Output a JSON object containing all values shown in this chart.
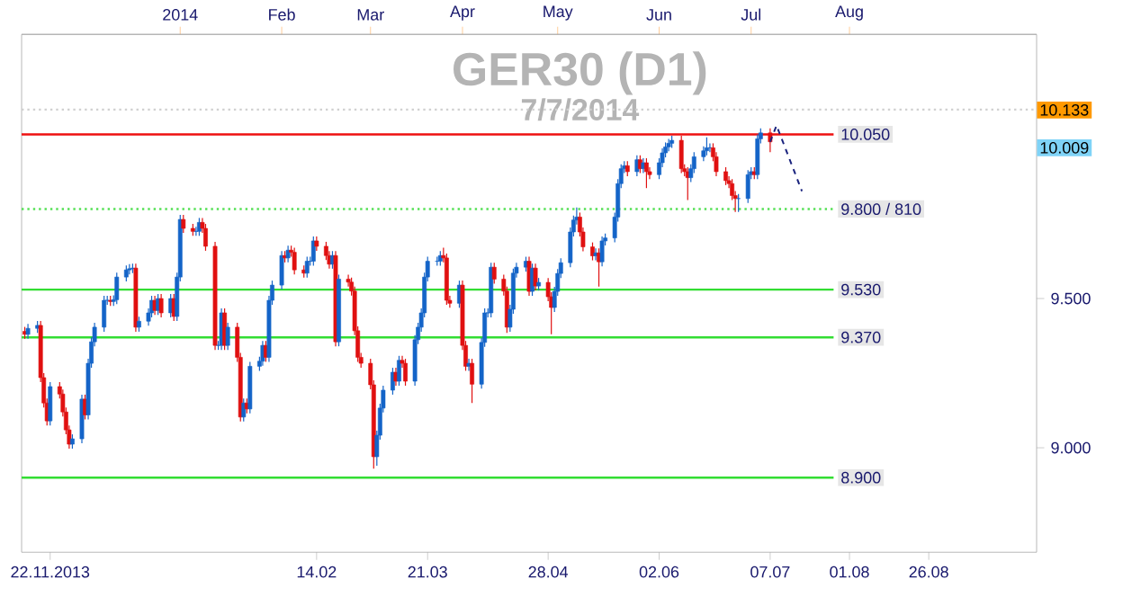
{
  "chart_data": {
    "type": "candlestick",
    "title": "GER30 (D1)",
    "subtitle": "7/7/2014",
    "colors": [
      "#e01010",
      "#1464c8",
      "#1464c8",
      "#e01010",
      "#e01010",
      "#e01010",
      "#1464c8",
      "#e01010",
      "#e01010",
      "#e01010",
      "#e01010",
      "#1464c8",
      "#1464c8",
      "#e01010",
      "#1464c8",
      "#1464c8",
      "#1464c8",
      "#1464c8",
      "#1464c8",
      "#e01010",
      "#1464c8",
      "#1464c8",
      "#1464c8",
      "#1464c8",
      "#1464c8",
      "#e01010",
      "#1464c8",
      "#1464c8",
      "#1464c8",
      "#e01010",
      "#1464c8",
      "#e01010",
      "#1464c8",
      "#e01010",
      "#1464c8",
      "#1464c8",
      "#e01010",
      "#e01010",
      "#1464c8",
      "#1464c8",
      "#e01010",
      "#e01010",
      "#e01010",
      "#1464c8",
      "#1464c8",
      "#e01010",
      "#1464c8",
      "#e01010",
      "#e01010",
      "#1464c8",
      "#e01010",
      "#1464c8",
      "#1464c8",
      "#1464c8",
      "#e01010",
      "#1464c8",
      "#1464c8",
      "#1464c8",
      "#e01010",
      "#1464c8",
      "#e01010",
      "#e01010",
      "#e01010",
      "#1464c8",
      "#1464c8",
      "#1464c8",
      "#e01010",
      "#e01010",
      "#e01010",
      "#1464c8",
      "#e01010",
      "#1464c8",
      "#e01010",
      "#e01010",
      "#e01010",
      "#e01010",
      "#e01010",
      "#e01010",
      "#e01010",
      "#1464c8",
      "#1464c8",
      "#1464c8",
      "#1464c8",
      "#e01010",
      "#1464c8",
      "#e01010",
      "#e01010",
      "#1464c8",
      "#1464c8",
      "#1464c8",
      "#1464c8",
      "#1464c8",
      "#1464c8",
      "#1464c8",
      "#e01010",
      "#e01010",
      "#e01010",
      "#1464c8",
      "#e01010",
      "#e01010",
      "#1464c8",
      "#e01010",
      "#1464c8",
      "#1464c8",
      "#1464c8",
      "#1464c8",
      "#e01010",
      "#e01010",
      "#e01010",
      "#1464c8",
      "#1464c8",
      "#1464c8",
      "#1464c8",
      "#e01010",
      "#1464c8",
      "#e01010",
      "#1464c8",
      "#e01010",
      "#e01010",
      "#1464c8",
      "#1464c8",
      "#1464c8",
      "#1464c8",
      "#1464c8",
      "#1464c8",
      "#e01010",
      "#e01010",
      "#e01010",
      "#1464c8",
      "#e01010",
      "#1464c8",
      "#1464c8",
      "#1464c8",
      "#1464c8",
      "#1464c8",
      "#1464c8",
      "#e01010",
      "#1464c8",
      "#e01010",
      "#1464c8",
      "#e01010",
      "#e01010",
      "#1464c8",
      "#1464c8",
      "#1464c8",
      "#1464c8",
      "#1464c8",
      "#e01010",
      "#e01010",
      "#e01010",
      "#1464c8",
      "#1464c8",
      "#1464c8",
      "#1464c8",
      "#1464c8",
      "#e01010",
      "#e01010",
      "#e01010",
      "#e01010",
      "#e01010",
      "#e01010",
      "#1464c8",
      "#1464c8",
      "#1464c8",
      "#e01010",
      "#1464c8",
      "#1464c8",
      "#e01010"
    ],
    "x": [
      "2013-11-14",
      "2013-11-15",
      "2013-11-18",
      "2013-11-19",
      "2013-11-20",
      "2013-11-21",
      "2013-11-22",
      "2013-11-25",
      "2013-11-26",
      "2013-11-27",
      "2013-11-28",
      "2013-11-29",
      "2013-12-02",
      "2013-12-03",
      "2013-12-04",
      "2013-12-05",
      "2013-12-06",
      "2013-12-09",
      "2013-12-10",
      "2013-12-11",
      "2013-12-12",
      "2013-12-13",
      "2013-12-16",
      "2013-12-17",
      "2013-12-18",
      "2013-12-19",
      "2013-12-20",
      "2013-12-23",
      "2013-12-24",
      "2013-12-25",
      "2013-12-26",
      "2013-12-27",
      "2013-12-30",
      "2013-12-31",
      "2014-01-01",
      "2014-01-02",
      "2014-01-03",
      "2014-01-06",
      "2014-01-07",
      "2014-01-08",
      "2014-01-09",
      "2014-01-10",
      "2014-01-13",
      "2014-01-14",
      "2014-01-15",
      "2014-01-16",
      "2014-01-17",
      "2014-01-20",
      "2014-01-21",
      "2014-01-22",
      "2014-01-23",
      "2014-01-24",
      "2014-01-27",
      "2014-01-28",
      "2014-01-29",
      "2014-01-30",
      "2014-01-31",
      "2014-02-03",
      "2014-02-04",
      "2014-02-05",
      "2014-02-06",
      "2014-02-07",
      "2014-02-10",
      "2014-02-11",
      "2014-02-12",
      "2014-02-13",
      "2014-02-14",
      "2014-02-17",
      "2014-02-18",
      "2014-02-19",
      "2014-02-20",
      "2014-02-21",
      "2014-02-24",
      "2014-02-25",
      "2014-02-26",
      "2014-02-27",
      "2014-02-28",
      "2014-03-03",
      "2014-03-04",
      "2014-03-05",
      "2014-03-06",
      "2014-03-07",
      "2014-03-10",
      "2014-03-11",
      "2014-03-12",
      "2014-03-13",
      "2014-03-14",
      "2014-03-17",
      "2014-03-18",
      "2014-03-19",
      "2014-03-20",
      "2014-03-21",
      "2014-03-24",
      "2014-03-25",
      "2014-03-26",
      "2014-03-27",
      "2014-03-28",
      "2014-03-31",
      "2014-04-01",
      "2014-04-02",
      "2014-04-03",
      "2014-04-04",
      "2014-04-07",
      "2014-04-08",
      "2014-04-09",
      "2014-04-10",
      "2014-04-11",
      "2014-04-14",
      "2014-04-15",
      "2014-04-16",
      "2014-04-17",
      "2014-04-18",
      "2014-04-21",
      "2014-04-22",
      "2014-04-23",
      "2014-04-24",
      "2014-04-25",
      "2014-04-28",
      "2014-04-29",
      "2014-04-30",
      "2014-05-01",
      "2014-05-02",
      "2014-05-05",
      "2014-05-06",
      "2014-05-07",
      "2014-05-08",
      "2014-05-09",
      "2014-05-12",
      "2014-05-13",
      "2014-05-14",
      "2014-05-15",
      "2014-05-16",
      "2014-05-19",
      "2014-05-20",
      "2014-05-21",
      "2014-05-22",
      "2014-05-23",
      "2014-05-26",
      "2014-05-27",
      "2014-05-28",
      "2014-05-29",
      "2014-05-30",
      "2014-06-02",
      "2014-06-03",
      "2014-06-04",
      "2014-06-05",
      "2014-06-06",
      "2014-06-09",
      "2014-06-10",
      "2014-06-11",
      "2014-06-12",
      "2014-06-13",
      "2014-06-16",
      "2014-06-17",
      "2014-06-18",
      "2014-06-19",
      "2014-06-20",
      "2014-06-23",
      "2014-06-24",
      "2014-06-25",
      "2014-06-26",
      "2014-06-27",
      "2014-06-30",
      "2014-07-01",
      "2014-07-02",
      "2014-07-03",
      "2014-07-04",
      "2014-07-07"
    ],
    "ohlc": [
      [
        9.39,
        9.405,
        9.365,
        9.38
      ],
      [
        9.38,
        9.415,
        9.365,
        9.4
      ],
      [
        9.4,
        9.425,
        9.385,
        9.41
      ],
      [
        9.41,
        9.425,
        9.22,
        9.235
      ],
      [
        9.235,
        9.25,
        9.135,
        9.15
      ],
      [
        9.15,
        9.165,
        9.075,
        9.09
      ],
      [
        9.09,
        9.22,
        9.075,
        9.205
      ],
      [
        9.205,
        9.22,
        9.165,
        9.18
      ],
      [
        9.18,
        9.195,
        9.105,
        9.12
      ],
      [
        9.12,
        9.135,
        9.045,
        9.06
      ],
      [
        9.06,
        9.075,
        8.997,
        9.012
      ],
      [
        9.012,
        9.045,
        8.997,
        9.03
      ],
      [
        9.03,
        9.178,
        9.015,
        9.163
      ],
      [
        9.163,
        9.178,
        9.095,
        9.11
      ],
      [
        9.11,
        9.298,
        9.095,
        9.283
      ],
      [
        9.283,
        9.37,
        9.268,
        9.355
      ],
      [
        9.355,
        9.419,
        9.34,
        9.404
      ],
      [
        9.404,
        9.509,
        9.389,
        9.494
      ],
      [
        9.494,
        9.509,
        9.479,
        9.494
      ],
      [
        9.494,
        9.509,
        9.475,
        9.49
      ],
      [
        9.49,
        9.511,
        9.475,
        9.496
      ],
      [
        9.496,
        9.587,
        9.481,
        9.572
      ],
      [
        9.572,
        9.611,
        9.557,
        9.596
      ],
      [
        9.596,
        9.615,
        9.581,
        9.6
      ],
      [
        9.6,
        9.617,
        9.585,
        9.602
      ],
      [
        9.602,
        9.617,
        9.389,
        9.404
      ],
      [
        9.404,
        9.439,
        9.389,
        9.424
      ],
      [
        9.424,
        9.467,
        9.409,
        9.452
      ],
      [
        9.452,
        9.509,
        9.437,
        9.494
      ],
      [
        9.494,
        9.509,
        9.445,
        9.46
      ],
      [
        9.46,
        9.515,
        9.445,
        9.5
      ],
      [
        9.5,
        9.515,
        9.437,
        9.452
      ],
      [
        9.452,
        9.515,
        9.437,
        9.5
      ],
      [
        9.5,
        9.515,
        9.425,
        9.44
      ],
      [
        9.44,
        9.587,
        9.425,
        9.572
      ],
      [
        9.572,
        9.78,
        9.557,
        9.765
      ],
      [
        9.765,
        9.78,
        9.72,
        9.735
      ],
      [
        9.735,
        9.75,
        9.71,
        9.725
      ],
      [
        9.725,
        9.74,
        9.71,
        9.725
      ],
      [
        9.725,
        9.77,
        9.71,
        9.755
      ],
      [
        9.755,
        9.77,
        9.72,
        9.735
      ],
      [
        9.735,
        9.75,
        9.66,
        9.675
      ],
      [
        9.675,
        9.69,
        9.328,
        9.343
      ],
      [
        9.343,
        9.358,
        9.328,
        9.343
      ],
      [
        9.343,
        9.467,
        9.328,
        9.452
      ],
      [
        9.452,
        9.467,
        9.328,
        9.343
      ],
      [
        9.343,
        9.419,
        9.328,
        9.404
      ],
      [
        9.404,
        9.419,
        9.288,
        9.303
      ],
      [
        9.303,
        9.318,
        9.088,
        9.103
      ],
      [
        9.103,
        9.165,
        9.088,
        9.15
      ],
      [
        9.15,
        9.165,
        9.115,
        9.13
      ],
      [
        9.13,
        9.288,
        9.115,
        9.273
      ],
      [
        9.273,
        9.305,
        9.258,
        9.29
      ],
      [
        9.29,
        9.358,
        9.275,
        9.343
      ],
      [
        9.343,
        9.358,
        9.288,
        9.303
      ],
      [
        9.303,
        9.509,
        9.288,
        9.494
      ],
      [
        9.494,
        9.56,
        9.479,
        9.545
      ],
      [
        9.545,
        9.659,
        9.53,
        9.644
      ],
      [
        9.644,
        9.659,
        9.621,
        9.636
      ],
      [
        9.636,
        9.677,
        9.621,
        9.662
      ],
      [
        9.662,
        9.677,
        9.64,
        9.655
      ],
      [
        9.655,
        9.67,
        9.581,
        9.596
      ],
      [
        9.596,
        9.611,
        9.57,
        9.585
      ],
      [
        9.585,
        9.64,
        9.57,
        9.625
      ],
      [
        9.625,
        9.64,
        9.61,
        9.625
      ],
      [
        9.625,
        9.708,
        9.61,
        9.693
      ],
      [
        9.693,
        9.708,
        9.66,
        9.675
      ],
      [
        9.675,
        9.69,
        9.629,
        9.644
      ],
      [
        9.644,
        9.659,
        9.6,
        9.615
      ],
      [
        9.615,
        9.659,
        9.6,
        9.644
      ],
      [
        9.644,
        9.659,
        9.34,
        9.355
      ],
      [
        9.355,
        9.58,
        9.34,
        9.565
      ],
      [
        9.565,
        9.58,
        9.54,
        9.555
      ],
      [
        9.555,
        9.57,
        9.51,
        9.525
      ],
      [
        9.525,
        9.54,
        9.377,
        9.392
      ],
      [
        9.392,
        9.407,
        9.288,
        9.303
      ],
      [
        9.303,
        9.318,
        9.268,
        9.283
      ],
      [
        9.283,
        9.298,
        9.196,
        9.211
      ],
      [
        9.211,
        9.226,
        8.93,
        8.97
      ],
      [
        8.97,
        9.057,
        8.94,
        9.042
      ],
      [
        9.042,
        9.148,
        9.027,
        9.133
      ],
      [
        9.133,
        9.208,
        9.118,
        9.193
      ],
      [
        9.193,
        9.268,
        9.178,
        9.253
      ],
      [
        9.253,
        9.268,
        9.208,
        9.223
      ],
      [
        9.223,
        9.308,
        9.208,
        9.293
      ],
      [
        9.293,
        9.308,
        9.268,
        9.283
      ],
      [
        9.283,
        9.298,
        9.208,
        9.223
      ],
      [
        9.223,
        9.377,
        9.208,
        9.362
      ],
      [
        9.362,
        9.419,
        9.347,
        9.404
      ],
      [
        9.404,
        9.467,
        9.389,
        9.452
      ],
      [
        9.452,
        9.587,
        9.437,
        9.572
      ],
      [
        9.572,
        9.64,
        9.557,
        9.625
      ],
      [
        9.625,
        9.64,
        9.61,
        9.625
      ],
      [
        9.625,
        9.659,
        9.61,
        9.644
      ],
      [
        9.644,
        9.67,
        9.621,
        9.636
      ],
      [
        9.636,
        9.651,
        9.479,
        9.494
      ],
      [
        9.494,
        9.509,
        9.469,
        9.484
      ],
      [
        9.484,
        9.56,
        9.469,
        9.545
      ],
      [
        9.545,
        9.56,
        9.328,
        9.343
      ],
      [
        9.343,
        9.358,
        9.258,
        9.273
      ],
      [
        9.273,
        9.298,
        9.258,
        9.283
      ],
      [
        9.283,
        9.298,
        9.15,
        9.213
      ],
      [
        9.213,
        9.368,
        9.198,
        9.353
      ],
      [
        9.353,
        9.467,
        9.338,
        9.452
      ],
      [
        9.452,
        9.467,
        9.437,
        9.452
      ],
      [
        9.452,
        9.62,
        9.437,
        9.605
      ],
      [
        9.605,
        9.62,
        9.55,
        9.565
      ],
      [
        9.565,
        9.58,
        9.51,
        9.525
      ],
      [
        9.525,
        9.54,
        9.385,
        9.404
      ],
      [
        9.404,
        9.479,
        9.389,
        9.464
      ],
      [
        9.464,
        9.6,
        9.449,
        9.585
      ],
      [
        9.585,
        9.62,
        9.57,
        9.605
      ],
      [
        9.605,
        9.64,
        9.59,
        9.625
      ],
      [
        9.625,
        9.64,
        9.509,
        9.524
      ],
      [
        9.524,
        9.617,
        9.509,
        9.602
      ],
      [
        9.602,
        9.617,
        9.527,
        9.542
      ],
      [
        9.542,
        9.569,
        9.527,
        9.554
      ],
      [
        9.554,
        9.569,
        9.491,
        9.506
      ],
      [
        9.506,
        9.521,
        9.38,
        9.47
      ],
      [
        9.47,
        9.539,
        9.455,
        9.524
      ],
      [
        9.524,
        9.599,
        9.509,
        9.584
      ],
      [
        9.584,
        9.635,
        9.569,
        9.62
      ],
      [
        9.62,
        9.738,
        9.605,
        9.723
      ],
      [
        9.723,
        9.778,
        9.708,
        9.763
      ],
      [
        9.763,
        9.805,
        9.748,
        9.773
      ],
      [
        9.773,
        9.788,
        9.708,
        9.723
      ],
      [
        9.723,
        9.738,
        9.658,
        9.673
      ],
      [
        9.673,
        9.688,
        9.628,
        9.643
      ],
      [
        9.643,
        9.668,
        9.628,
        9.653
      ],
      [
        9.653,
        9.668,
        9.54,
        9.623
      ],
      [
        9.623,
        9.708,
        9.608,
        9.693
      ],
      [
        9.693,
        9.718,
        9.678,
        9.703
      ],
      [
        9.703,
        9.788,
        9.688,
        9.773
      ],
      [
        9.773,
        9.9,
        9.758,
        9.885
      ],
      [
        9.885,
        9.95,
        9.87,
        9.935
      ],
      [
        9.935,
        9.96,
        9.92,
        9.945
      ],
      [
        9.945,
        9.96,
        9.91,
        9.925
      ],
      [
        9.925,
        9.98,
        9.91,
        9.965
      ],
      [
        9.965,
        9.98,
        9.92,
        9.935
      ],
      [
        9.935,
        9.97,
        9.92,
        9.955
      ],
      [
        9.955,
        9.97,
        9.87,
        9.925
      ],
      [
        9.925,
        9.94,
        9.9,
        9.915
      ],
      [
        9.915,
        9.97,
        9.9,
        9.955
      ],
      [
        9.955,
        10.003,
        9.94,
        9.988
      ],
      [
        9.988,
        10.023,
        9.973,
        10.008
      ],
      [
        10.008,
        10.035,
        9.993,
        10.02
      ],
      [
        10.02,
        10.045,
        10.005,
        10.03
      ],
      [
        10.03,
        10.045,
        9.92,
        9.935
      ],
      [
        9.935,
        9.95,
        9.91,
        9.925
      ],
      [
        9.925,
        9.94,
        9.83,
        9.905
      ],
      [
        9.905,
        9.95,
        9.89,
        9.935
      ],
      [
        9.935,
        9.99,
        9.92,
        9.975
      ],
      [
        9.975,
        10.01,
        9.96,
        9.995
      ],
      [
        9.995,
        10.04,
        9.98,
        10.005
      ],
      [
        10.005,
        10.02,
        9.99,
        10.005
      ],
      [
        10.005,
        10.02,
        9.96,
        9.975
      ],
      [
        9.975,
        9.99,
        9.91,
        9.925
      ],
      [
        9.925,
        9.94,
        9.88,
        9.895
      ],
      [
        9.895,
        9.91,
        9.87,
        9.885
      ],
      [
        9.885,
        9.9,
        9.83,
        9.845
      ],
      [
        9.845,
        9.86,
        9.79,
        9.835
      ],
      [
        9.835,
        9.85,
        9.79,
        9.835
      ],
      [
        9.835,
        9.93,
        9.82,
        9.915
      ],
      [
        9.915,
        9.94,
        9.9,
        9.925
      ],
      [
        9.925,
        9.94,
        9.9,
        9.915
      ],
      [
        9.915,
        10.05,
        9.9,
        10.035
      ],
      [
        10.035,
        10.07,
        10.02,
        10.055
      ],
      [
        10.055,
        10.07,
        9.99,
        10.025
      ]
    ],
    "series": [
      {
        "type": "line",
        "color": "#1a237e",
        "line_style": "dashed",
        "x": [
          "2014-07-07",
          "2014-07-09",
          "2014-07-17"
        ],
        "values": [
          10.025,
          10.08,
          9.86
        ]
      }
    ],
    "xlim": [
      "2013-11-13",
      "2014-09-29"
    ],
    "ylim": [
      8.65,
      10.385
    ],
    "xticks": [
      {
        "value": "2013-11-22",
        "label": "22.11.2013"
      },
      {
        "value": "2014-02-14",
        "label": "14.02"
      },
      {
        "value": "2014-03-21",
        "label": "21.03"
      },
      {
        "value": "2014-04-28",
        "label": "28.04"
      },
      {
        "value": "2014-06-02",
        "label": "02.06"
      },
      {
        "value": "2014-07-07",
        "label": "07.07"
      },
      {
        "value": "2014-08-01",
        "label": "01.08"
      },
      {
        "value": "2014-08-26",
        "label": "26.08"
      }
    ],
    "x2lim": [
      "2013-11-13",
      "2014-09-29"
    ],
    "x2ticks": [
      {
        "value": "2014-01-02",
        "label": "2014"
      },
      {
        "value": "2014-02-03",
        "label": "Feb"
      },
      {
        "value": "2014-03-03",
        "label": "Mar"
      },
      {
        "value": "2014-04-01",
        "label": "Apr"
      },
      {
        "value": "2014-05-01",
        "label": "May"
      },
      {
        "value": "2014-06-02",
        "label": "Jun"
      },
      {
        "value": "2014-07-01",
        "label": "Jul"
      },
      {
        "value": "2014-08-01",
        "label": "Aug"
      }
    ],
    "yticks": [
      {
        "value": 9,
        "label": "9.000"
      },
      {
        "value": 9.5,
        "label": "9.500"
      }
    ],
    "ref_lines": [
      {
        "axis": "y",
        "value": 10.133,
        "color": "#d0d0d0",
        "line_style": "dotted"
      },
      {
        "axis": "y",
        "value": 10.05,
        "label": "10.050",
        "color": "#ee1111",
        "line_style": "solid"
      },
      {
        "axis": "y",
        "value": 9.8,
        "label": "9.800 / 810",
        "color": "#55e055",
        "line_style": "dotted"
      },
      {
        "axis": "y",
        "value": 9.53,
        "label": "9.530",
        "color": "#33dd33",
        "line_style": "solid"
      },
      {
        "axis": "y",
        "value": 9.37,
        "label": "9.370",
        "color": "#33dd33",
        "line_style": "solid"
      },
      {
        "axis": "y",
        "value": 8.9,
        "label": "8.900",
        "color": "#33dd33",
        "line_style": "solid"
      }
    ],
    "annotations": [
      "10.133",
      "10.009"
    ]
  }
}
